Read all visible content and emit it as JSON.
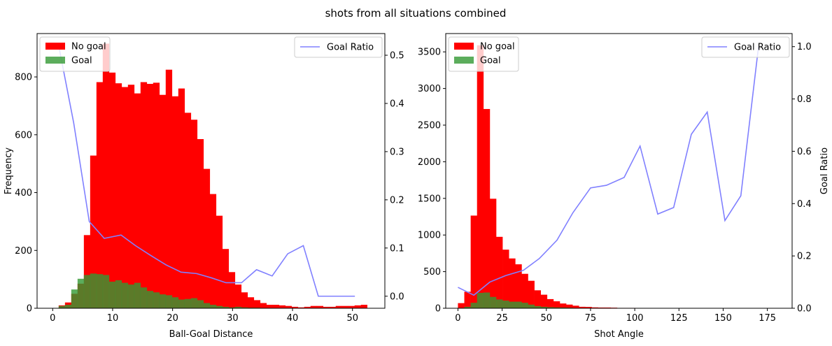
{
  "suptitle": "shots from all situations combined",
  "chart_data": [
    {
      "type": "bar",
      "title": "",
      "xlabel": "Ball-Goal Distance",
      "ylabel": "Frequency",
      "y2label": "",
      "xlim": [
        -2.6,
        55.4
      ],
      "ylim": [
        0,
        950
      ],
      "y2lim": [
        -0.025,
        0.545
      ],
      "xticks": [
        0,
        10,
        20,
        30,
        40,
        50
      ],
      "yticks": [
        0,
        200,
        400,
        600,
        800
      ],
      "y2ticks": [
        0.0,
        0.1,
        0.2,
        0.3,
        0.4,
        0.5
      ],
      "y2tick_decimals": 1,
      "bin_width": 1.05,
      "legend_bars": {
        "position": "upper left",
        "entries": [
          {
            "label": "No goal",
            "color": "#ff0000"
          },
          {
            "label": "Goal",
            "color": "#339933"
          }
        ]
      },
      "legend_line": {
        "position": "upper right",
        "entries": [
          {
            "label": "Goal Ratio",
            "color": "#8080ff"
          }
        ]
      },
      "bins_left": [
        1.0,
        2.05,
        3.1,
        4.15,
        5.2,
        6.25,
        7.3,
        8.35,
        9.4,
        10.45,
        11.5,
        12.55,
        13.6,
        14.65,
        15.7,
        16.75,
        17.8,
        18.85,
        19.9,
        20.95,
        22.0,
        23.05,
        24.1,
        25.15,
        26.2,
        27.25,
        28.3,
        29.35,
        30.4,
        31.45,
        32.5,
        33.55,
        34.6,
        35.65,
        36.7,
        37.75,
        38.8,
        39.85,
        40.9,
        41.95,
        43.0,
        44.05,
        45.1,
        46.15,
        47.2,
        48.25,
        49.3,
        50.35,
        51.4
      ],
      "series": [
        {
          "name": "No goal",
          "color": "#ff0000",
          "values": [
            10,
            20,
            50,
            85,
            253,
            528,
            782,
            915,
            815,
            778,
            765,
            773,
            743,
            782,
            776,
            780,
            738,
            825,
            733,
            760,
            676,
            652,
            585,
            482,
            395,
            320,
            205,
            125,
            82,
            55,
            38,
            28,
            18,
            12,
            12,
            10,
            8,
            5,
            3,
            5,
            8,
            8,
            5,
            5,
            8,
            8,
            8,
            10,
            12
          ]
        },
        {
          "name": "Goal",
          "color": "#339933",
          "values": [
            8,
            12,
            65,
            102,
            115,
            120,
            118,
            115,
            92,
            97,
            88,
            82,
            88,
            72,
            60,
            55,
            48,
            45,
            38,
            30,
            32,
            35,
            28,
            18,
            12,
            8,
            5,
            3,
            5,
            3,
            2,
            2,
            1,
            1,
            1,
            1,
            1,
            1,
            1,
            0,
            0,
            0,
            0,
            0,
            0,
            0,
            0,
            0,
            0
          ]
        }
      ],
      "ratio_line": {
        "name": "Goal Ratio",
        "color": "#8080ff",
        "x": [
          1,
          3.5,
          6.1,
          8.6,
          11.4,
          13.8,
          16.3,
          18.9,
          21.4,
          24.0,
          26.5,
          28.9,
          31.5,
          34.0,
          36.6,
          39.2,
          41.8,
          44.3,
          46.9,
          50.4
        ],
        "y": [
          0.52,
          0.36,
          0.155,
          0.12,
          0.127,
          0.105,
          0.085,
          0.065,
          0.05,
          0.047,
          0.038,
          0.028,
          0.028,
          0.055,
          0.042,
          0.088,
          0.105,
          0.0,
          0.0,
          0.0
        ]
      }
    },
    {
      "type": "bar",
      "title": "",
      "xlabel": "Shot Angle",
      "ylabel": "",
      "y2label": "Goal Ratio",
      "xlim": [
        -6.9,
        189.0
      ],
      "ylim": [
        0,
        3750
      ],
      "y2lim": [
        0,
        1.05
      ],
      "xticks": [
        0,
        25,
        50,
        75,
        100,
        125,
        150,
        175
      ],
      "yticks": [
        0,
        500,
        1000,
        1500,
        2000,
        2500,
        3000,
        3500
      ],
      "y2ticks": [
        0.0,
        0.2,
        0.4,
        0.6,
        0.8,
        1.0
      ],
      "y2tick_decimals": 1,
      "bin_width": 3.6,
      "legend_bars": {
        "position": "upper left",
        "entries": [
          {
            "label": "No goal",
            "color": "#ff0000"
          },
          {
            "label": "Goal",
            "color": "#339933"
          }
        ]
      },
      "legend_line": {
        "position": "upper right",
        "entries": [
          {
            "label": "Goal Ratio",
            "color": "#8080ff"
          }
        ]
      },
      "bins_left": [
        0.0,
        3.6,
        7.2,
        10.8,
        14.4,
        18.0,
        21.6,
        25.2,
        28.8,
        32.4,
        36.0,
        39.6,
        43.2,
        46.8,
        50.4,
        54.0,
        57.6,
        61.2,
        64.8,
        68.4,
        72.0,
        75.6,
        79.2,
        82.8,
        86.4,
        90.0,
        93.6,
        97.2,
        100.8,
        104.4,
        108.0,
        111.6,
        115.2,
        118.8,
        122.4,
        126.0,
        129.6,
        133.2,
        136.8,
        140.4,
        144.0,
        147.6,
        151.2,
        154.8,
        158.4,
        162.0,
        165.6
      ],
      "series": [
        {
          "name": "No goal",
          "color": "#ff0000",
          "values": [
            70,
            225,
            1265,
            3590,
            2720,
            1495,
            975,
            800,
            680,
            600,
            470,
            375,
            245,
            185,
            125,
            95,
            65,
            50,
            35,
            20,
            18,
            12,
            10,
            10,
            8,
            5,
            5,
            5,
            3,
            3,
            3,
            3,
            2,
            2,
            2,
            2,
            2,
            2,
            2,
            2,
            2,
            2,
            2,
            2,
            2,
            2,
            2
          ]
        },
        {
          "name": "Goal",
          "color": "#339933",
          "values": [
            5,
            20,
            75,
            210,
            215,
            155,
            120,
            105,
            90,
            90,
            75,
            50,
            30,
            20,
            15,
            12,
            10,
            8,
            5,
            5,
            5,
            5,
            5,
            3,
            3,
            3,
            3,
            2,
            2,
            2,
            1,
            1,
            1,
            1,
            1,
            1,
            1,
            1,
            1,
            1,
            0,
            0,
            0,
            0,
            0,
            0,
            0
          ]
        }
      ],
      "ratio_line": {
        "name": "Goal Ratio",
        "color": "#8080ff",
        "x": [
          0,
          9,
          18,
          27,
          37,
          46,
          56,
          65,
          75,
          84,
          94,
          103,
          113,
          122,
          132,
          141,
          151,
          160,
          170
        ],
        "y": [
          0.08,
          0.05,
          0.1,
          0.125,
          0.145,
          0.19,
          0.26,
          0.365,
          0.46,
          0.47,
          0.5,
          0.62,
          0.36,
          0.385,
          0.665,
          0.75,
          0.335,
          0.43,
          1.0
        ]
      }
    }
  ]
}
